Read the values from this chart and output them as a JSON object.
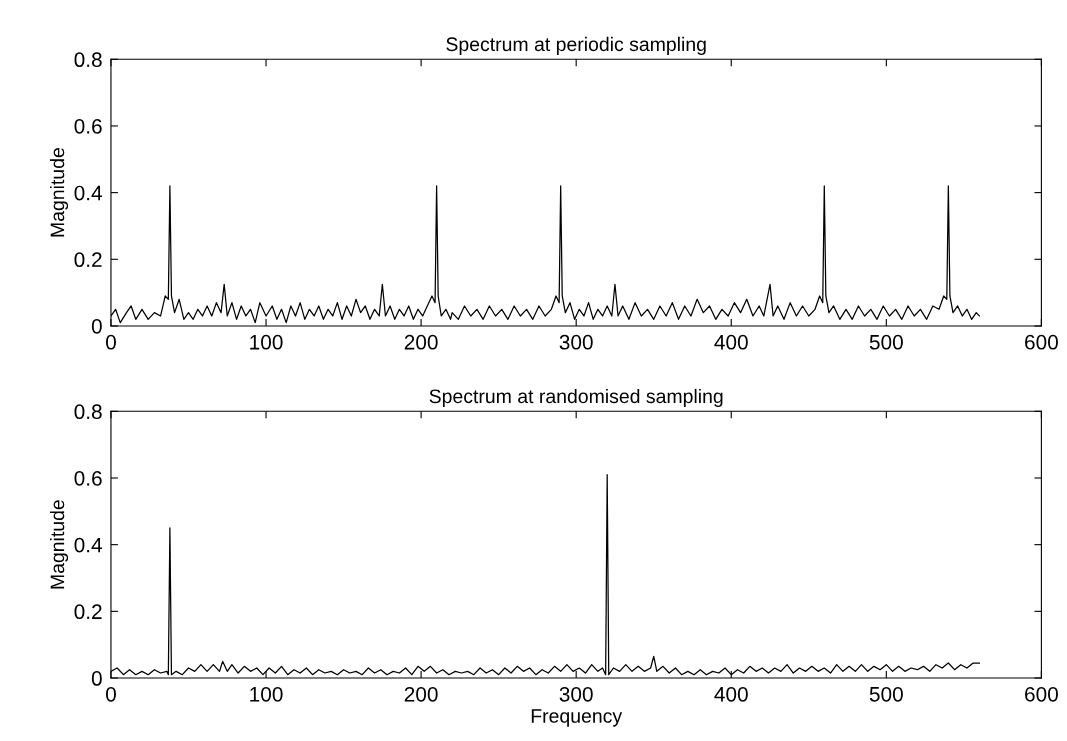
{
  "chart_data": [
    {
      "type": "line",
      "title": "Spectrum at periodic sampling",
      "ylabel": "Magnitude",
      "xlim": [
        0,
        600
      ],
      "ylim": [
        0,
        0.8
      ],
      "xticks": [
        0,
        100,
        200,
        300,
        400,
        500,
        600
      ],
      "yticks": [
        0,
        0.2,
        0.4,
        0.6,
        0.8
      ],
      "grid": false,
      "legend": false,
      "series": [
        {
          "color": "#000000",
          "x": [
            0,
            3,
            6,
            10,
            13,
            16,
            20,
            24,
            28,
            32,
            35,
            37,
            38,
            39,
            41,
            44,
            47,
            50,
            53,
            56,
            59,
            62,
            65,
            68,
            71,
            73,
            75,
            78,
            81,
            84,
            87,
            90,
            93,
            96,
            100,
            104,
            107,
            110,
            113,
            116,
            119,
            122,
            125,
            128,
            131,
            134,
            137,
            140,
            143,
            146,
            149,
            152,
            155,
            158,
            161,
            164,
            167,
            170,
            173,
            175,
            177,
            180,
            183,
            186,
            189,
            192,
            195,
            198,
            201,
            204,
            207,
            209,
            210,
            211,
            213,
            216,
            219,
            220,
            224,
            228,
            232,
            236,
            240,
            244,
            248,
            252,
            256,
            260,
            264,
            268,
            272,
            276,
            280,
            284,
            287,
            289,
            290,
            291,
            293,
            296,
            299,
            302,
            305,
            308,
            311,
            314,
            317,
            320,
            323,
            325,
            327,
            330,
            334,
            338,
            342,
            346,
            350,
            354,
            358,
            362,
            366,
            370,
            374,
            378,
            382,
            386,
            390,
            394,
            398,
            402,
            406,
            410,
            414,
            418,
            421,
            425,
            427,
            430,
            434,
            438,
            442,
            446,
            450,
            454,
            457,
            459,
            460,
            461,
            463,
            466,
            470,
            474,
            478,
            482,
            486,
            490,
            494,
            498,
            502,
            506,
            510,
            514,
            518,
            522,
            526,
            530,
            534,
            537,
            539,
            540,
            541,
            543,
            546,
            549,
            552,
            555,
            558,
            560
          ],
          "values": [
            0.03,
            0.05,
            0.01,
            0.04,
            0.06,
            0.02,
            0.05,
            0.02,
            0.04,
            0.03,
            0.09,
            0.08,
            0.42,
            0.09,
            0.04,
            0.08,
            0.02,
            0.04,
            0.02,
            0.05,
            0.03,
            0.06,
            0.03,
            0.07,
            0.04,
            0.125,
            0.03,
            0.07,
            0.02,
            0.06,
            0.03,
            0.05,
            0.01,
            0.07,
            0.03,
            0.06,
            0.02,
            0.05,
            0.01,
            0.06,
            0.03,
            0.07,
            0.02,
            0.05,
            0.03,
            0.06,
            0.02,
            0.05,
            0.03,
            0.07,
            0.02,
            0.06,
            0.03,
            0.08,
            0.04,
            0.06,
            0.02,
            0.05,
            0.03,
            0.125,
            0.03,
            0.06,
            0.02,
            0.05,
            0.03,
            0.06,
            0.02,
            0.05,
            0.03,
            0.06,
            0.09,
            0.07,
            0.42,
            0.09,
            0.03,
            0.05,
            0.02,
            0.04,
            0.02,
            0.06,
            0.03,
            0.05,
            0.02,
            0.06,
            0.03,
            0.05,
            0.02,
            0.06,
            0.03,
            0.05,
            0.02,
            0.06,
            0.03,
            0.05,
            0.09,
            0.07,
            0.42,
            0.09,
            0.04,
            0.07,
            0.02,
            0.05,
            0.03,
            0.07,
            0.02,
            0.05,
            0.03,
            0.06,
            0.03,
            0.125,
            0.03,
            0.06,
            0.02,
            0.07,
            0.03,
            0.05,
            0.02,
            0.06,
            0.03,
            0.07,
            0.02,
            0.06,
            0.03,
            0.08,
            0.04,
            0.06,
            0.02,
            0.05,
            0.03,
            0.07,
            0.04,
            0.08,
            0.03,
            0.06,
            0.03,
            0.125,
            0.03,
            0.06,
            0.02,
            0.07,
            0.03,
            0.06,
            0.03,
            0.05,
            0.09,
            0.07,
            0.42,
            0.09,
            0.04,
            0.06,
            0.02,
            0.05,
            0.02,
            0.06,
            0.03,
            0.05,
            0.02,
            0.06,
            0.03,
            0.05,
            0.02,
            0.06,
            0.03,
            0.05,
            0.02,
            0.06,
            0.05,
            0.09,
            0.08,
            0.42,
            0.09,
            0.04,
            0.06,
            0.03,
            0.05,
            0.02,
            0.04,
            0.03
          ]
        }
      ]
    },
    {
      "type": "line",
      "title": "Spectrum at randomised sampling",
      "xlabel": "Frequency",
      "ylabel": "Magnitude",
      "xlim": [
        0,
        600
      ],
      "ylim": [
        0,
        0.8
      ],
      "xticks": [
        0,
        100,
        200,
        300,
        400,
        500,
        600
      ],
      "yticks": [
        0,
        0.2,
        0.4,
        0.6,
        0.8
      ],
      "grid": false,
      "legend": false,
      "series": [
        {
          "color": "#000000",
          "x": [
            0,
            4,
            8,
            12,
            16,
            20,
            24,
            28,
            32,
            36,
            37,
            38,
            39,
            42,
            46,
            50,
            54,
            58,
            62,
            66,
            70,
            72,
            75,
            78,
            82,
            86,
            90,
            94,
            98,
            102,
            106,
            110,
            114,
            118,
            122,
            126,
            130,
            134,
            138,
            142,
            146,
            150,
            154,
            158,
            162,
            166,
            170,
            174,
            178,
            182,
            186,
            190,
            194,
            198,
            202,
            206,
            210,
            214,
            218,
            222,
            226,
            230,
            234,
            238,
            242,
            246,
            250,
            254,
            258,
            262,
            266,
            270,
            274,
            278,
            282,
            286,
            290,
            294,
            298,
            302,
            306,
            310,
            314,
            317,
            319,
            320,
            321,
            324,
            328,
            332,
            336,
            340,
            344,
            348,
            350,
            352,
            356,
            360,
            364,
            368,
            372,
            376,
            380,
            384,
            388,
            392,
            396,
            400,
            404,
            408,
            412,
            416,
            420,
            424,
            428,
            432,
            436,
            440,
            444,
            448,
            452,
            456,
            460,
            464,
            468,
            472,
            476,
            480,
            484,
            488,
            492,
            496,
            500,
            504,
            508,
            512,
            516,
            520,
            524,
            528,
            532,
            536,
            540,
            544,
            548,
            552,
            556,
            560
          ],
          "values": [
            0.02,
            0.03,
            0.01,
            0.025,
            0.01,
            0.02,
            0.01,
            0.025,
            0.015,
            0.02,
            0.01,
            0.45,
            0.01,
            0.02,
            0.01,
            0.03,
            0.02,
            0.04,
            0.02,
            0.04,
            0.02,
            0.05,
            0.02,
            0.04,
            0.015,
            0.035,
            0.02,
            0.03,
            0.01,
            0.03,
            0.015,
            0.035,
            0.01,
            0.025,
            0.015,
            0.03,
            0.01,
            0.025,
            0.015,
            0.02,
            0.01,
            0.025,
            0.015,
            0.02,
            0.01,
            0.03,
            0.015,
            0.025,
            0.01,
            0.02,
            0.015,
            0.03,
            0.01,
            0.035,
            0.02,
            0.035,
            0.015,
            0.025,
            0.01,
            0.02,
            0.015,
            0.02,
            0.01,
            0.03,
            0.015,
            0.025,
            0.01,
            0.03,
            0.015,
            0.035,
            0.02,
            0.03,
            0.01,
            0.025,
            0.015,
            0.035,
            0.02,
            0.04,
            0.02,
            0.03,
            0.015,
            0.04,
            0.02,
            0.03,
            0.01,
            0.61,
            0.01,
            0.03,
            0.02,
            0.04,
            0.02,
            0.035,
            0.02,
            0.03,
            0.065,
            0.02,
            0.035,
            0.015,
            0.03,
            0.01,
            0.02,
            0.01,
            0.025,
            0.01,
            0.02,
            0.015,
            0.03,
            0.01,
            0.025,
            0.015,
            0.035,
            0.02,
            0.03,
            0.015,
            0.03,
            0.02,
            0.04,
            0.015,
            0.03,
            0.02,
            0.035,
            0.02,
            0.03,
            0.015,
            0.04,
            0.02,
            0.035,
            0.02,
            0.04,
            0.02,
            0.035,
            0.025,
            0.04,
            0.02,
            0.035,
            0.02,
            0.03,
            0.025,
            0.035,
            0.02,
            0.04,
            0.03,
            0.045,
            0.025,
            0.04,
            0.03,
            0.045,
            0.045
          ]
        }
      ]
    }
  ]
}
